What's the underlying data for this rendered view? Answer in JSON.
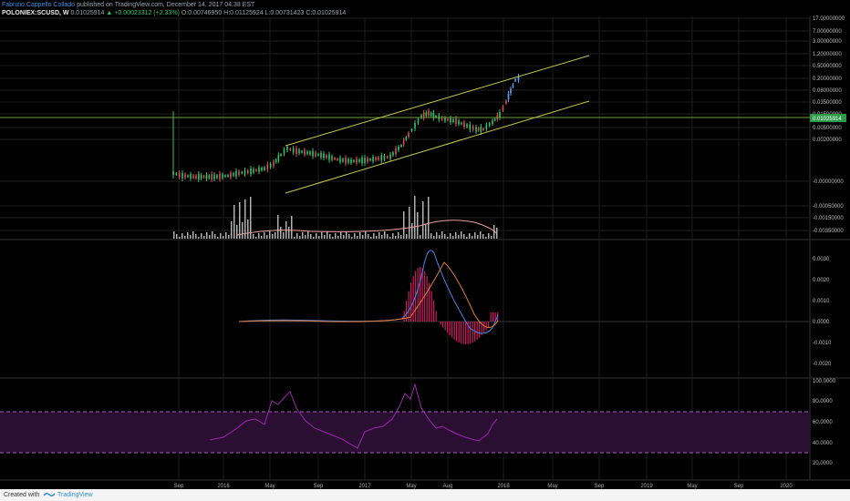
{
  "header": {
    "author": "Fabrizio Cappello Collado",
    "published": " published on TradingView.com, December 14, 2017 04:38 EST",
    "symbol": "POLONIEX:SCUSD, W",
    "price": " 0.01025914",
    "change": " ▲ +0.00023312 (+2.33%)",
    "ohlc": " O:0.00746950 H:0.01125924 L:0.00731423 C:0.01025914"
  },
  "footer": {
    "created_label": "Created with",
    "brand": "TradingView"
  },
  "colors": {
    "background": "#000000",
    "grid": "#1e1e1e",
    "candle_up": "#31c46a",
    "candle_down": "#e05050",
    "candle_recent": "#5aa0ff",
    "channel": "#c9c94a",
    "price_line": "#6e9b3a",
    "price_badge": "#2e9b4a",
    "macd_line": "#4a86e8",
    "signal_line": "#e07b39",
    "histogram": "#c2185b",
    "rsi_line": "#9c27b0",
    "rsi_band": "#2a0f33",
    "volume_bar": "#cfcfcf",
    "volume_ma": "#e9a0a0"
  },
  "chart_data": {
    "type": "line",
    "time_axis": [
      "Sep",
      "2016",
      "May",
      "Sep",
      "2017",
      "May",
      "Aug",
      "2018",
      "May",
      "Sep",
      "2019",
      "May",
      "Sep",
      "2020"
    ],
    "price_axis": [
      "17.00000000",
      "7.00000000",
      "3.00000000",
      "1.20000000",
      "0.50000000",
      "0.20000000",
      "0.08000000",
      "0.03500000",
      "0.01500000",
      "0.00500000",
      "0.00200000",
      "-0.00000000",
      "-0.00050000",
      "-0.00150000",
      "-0.00350000"
    ],
    "last_price_label": "0.01025914",
    "macd_axis": [
      "0.0030",
      "0.0020",
      "0.0010",
      "0.0000",
      "-0.0010",
      "-0.0020"
    ],
    "rsi_axis": [
      "100.0000",
      "80.0000",
      "60.0000",
      "40.0000",
      "20.0000"
    ],
    "rsi_bands": [
      70,
      30
    ],
    "panes": [
      "price",
      "macd",
      "rsi"
    ]
  }
}
